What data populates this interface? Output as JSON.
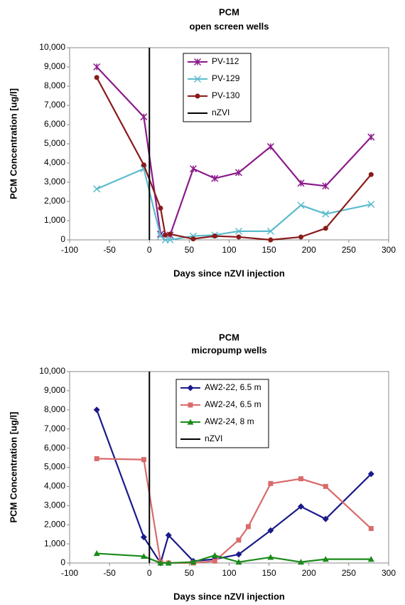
{
  "chart_data": [
    {
      "type": "line",
      "title": "PCM",
      "subtitle": "open screen wells",
      "x_label": "Days since nZVI injection",
      "y_label": "PCM Concentration  [ug/l]",
      "xlim": [
        -100,
        300
      ],
      "xticks": [
        -100,
        -50,
        0,
        50,
        100,
        150,
        200,
        250,
        300
      ],
      "ylim": [
        0,
        10000
      ],
      "yticks": [
        0,
        {
          "value": 1000,
          "label": "1,000"
        },
        {
          "value": 2000,
          "label": "2,000"
        },
        {
          "value": 3000,
          "label": "3,000"
        },
        {
          "value": 4000,
          "label": "4,000"
        },
        {
          "value": 5000,
          "label": "5,000"
        },
        {
          "value": 6000,
          "label": "6,000"
        },
        {
          "value": 7000,
          "label": "7,000"
        },
        {
          "value": 8000,
          "label": "8,000"
        },
        {
          "value": 9000,
          "label": "9,000"
        },
        {
          "value": 10000,
          "label": "10,000"
        }
      ],
      "series": [
        {
          "name": "PV-112",
          "color": "#8b1a8b",
          "marker": "star",
          "x": [
            -66,
            -7,
            14,
            26,
            55,
            82,
            112,
            152,
            190,
            221,
            278
          ],
          "values": [
            9000,
            6400,
            300,
            250,
            3700,
            3200,
            3500,
            4850,
            2950,
            2800,
            5350
          ]
        },
        {
          "name": "PV-129",
          "color": "#5bbccc",
          "marker": "x",
          "x": [
            -66,
            -7,
            14,
            20,
            26,
            55,
            82,
            112,
            152,
            190,
            221,
            278
          ],
          "values": [
            2650,
            3700,
            200,
            0,
            0,
            200,
            250,
            450,
            450,
            1800,
            1350,
            1850
          ]
        },
        {
          "name": "PV-130",
          "color": "#8b1a1a",
          "marker": "circle",
          "x": [
            -66,
            -7,
            14,
            20,
            26,
            55,
            82,
            112,
            152,
            190,
            221,
            278
          ],
          "values": [
            8450,
            3900,
            1650,
            250,
            300,
            50,
            200,
            150,
            0,
            150,
            600,
            3400
          ]
        },
        {
          "name": "nZVI",
          "color": "#000000",
          "marker": "none",
          "x": [
            0,
            0
          ],
          "values": [
            0,
            10000
          ]
        }
      ]
    },
    {
      "type": "line",
      "title": "PCM",
      "subtitle": "micropump wells",
      "x_label": "Days since nZVI injection",
      "y_label": "PCM Concentration  [ug/l]",
      "xlim": [
        -100,
        300
      ],
      "xticks": [
        -100,
        -50,
        0,
        50,
        100,
        150,
        200,
        250,
        300
      ],
      "ylim": [
        0,
        10000
      ],
      "yticks": [
        0,
        {
          "value": 1000,
          "label": "1,000"
        },
        {
          "value": 2000,
          "label": "2,000"
        },
        {
          "value": 3000,
          "label": "3,000"
        },
        {
          "value": 4000,
          "label": "4,000"
        },
        {
          "value": 5000,
          "label": "5,000"
        },
        {
          "value": 6000,
          "label": "6,000"
        },
        {
          "value": 7000,
          "label": "7,000"
        },
        {
          "value": 8000,
          "label": "8,000"
        },
        {
          "value": 9000,
          "label": "9,000"
        },
        {
          "value": 10000,
          "label": "10,000"
        }
      ],
      "series": [
        {
          "name": "AW2-22, 6.5 m",
          "color": "#1a1a8b",
          "marker": "diamond",
          "x": [
            -66,
            -7,
            14,
            24,
            55,
            82,
            112,
            152,
            190,
            221,
            278
          ],
          "values": [
            8000,
            1350,
            0,
            1450,
            100,
            200,
            450,
            1700,
            2950,
            2300,
            4650
          ]
        },
        {
          "name": "AW2-24, 6.5 m",
          "color": "#d96b6b",
          "marker": "square",
          "x": [
            -66,
            -7,
            14,
            24,
            55,
            82,
            112,
            124,
            152,
            190,
            221,
            278
          ],
          "values": [
            5450,
            5400,
            50,
            0,
            0,
            100,
            1200,
            1900,
            4150,
            4400,
            4000,
            1800
          ]
        },
        {
          "name": "AW2-24, 8 m",
          "color": "#1a8b1a",
          "marker": "triangle",
          "x": [
            -66,
            -7,
            14,
            24,
            55,
            82,
            112,
            152,
            190,
            221,
            278
          ],
          "values": [
            500,
            350,
            0,
            0,
            50,
            400,
            50,
            300,
            50,
            200,
            200
          ]
        },
        {
          "name": "nZVI",
          "color": "#000000",
          "marker": "none",
          "x": [
            0,
            0
          ],
          "values": [
            0,
            10000
          ]
        }
      ]
    }
  ]
}
